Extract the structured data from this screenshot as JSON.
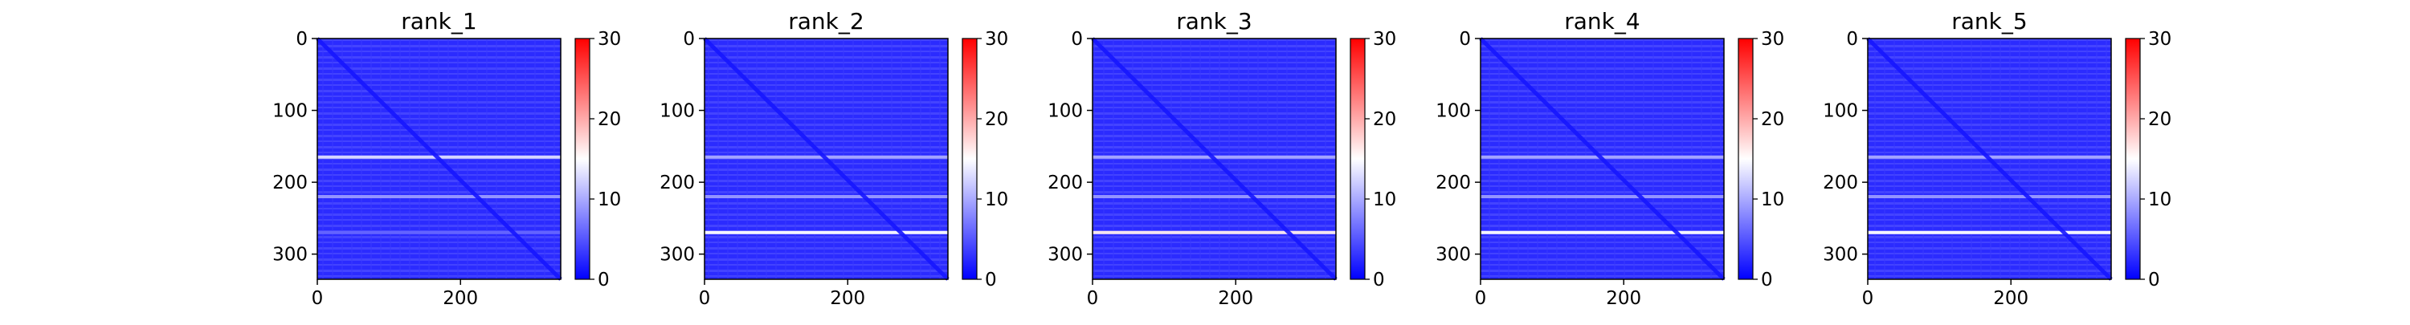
{
  "chart_data": [
    {
      "type": "heatmap",
      "title": "rank_1",
      "x_ticks": [
        "0",
        "200"
      ],
      "y_ticks": [
        "0",
        "100",
        "200",
        "300"
      ],
      "x_range": [
        0,
        340
      ],
      "y_range": [
        0,
        335
      ],
      "colorbar": {
        "min": 0,
        "max": 30,
        "ticks": [
          "0",
          "10",
          "20",
          "30"
        ]
      },
      "diagonal": true,
      "highlight_rows": [
        {
          "row": 165,
          "value": 13
        },
        {
          "row": 220,
          "value": 9
        },
        {
          "row": 270,
          "value": 6
        }
      ]
    },
    {
      "type": "heatmap",
      "title": "rank_2",
      "x_ticks": [
        "0",
        "200"
      ],
      "y_ticks": [
        "0",
        "100",
        "200",
        "300"
      ],
      "x_range": [
        0,
        340
      ],
      "y_range": [
        0,
        335
      ],
      "colorbar": {
        "min": 0,
        "max": 30,
        "ticks": [
          "0",
          "10",
          "20",
          "30"
        ]
      },
      "diagonal": true,
      "highlight_rows": [
        {
          "row": 165,
          "value": 10
        },
        {
          "row": 220,
          "value": 9
        },
        {
          "row": 270,
          "value": 15
        }
      ]
    },
    {
      "type": "heatmap",
      "title": "rank_3",
      "x_ticks": [
        "0",
        "200"
      ],
      "y_ticks": [
        "0",
        "100",
        "200",
        "300"
      ],
      "x_range": [
        0,
        340
      ],
      "y_range": [
        0,
        335
      ],
      "colorbar": {
        "min": 0,
        "max": 30,
        "ticks": [
          "0",
          "10",
          "20",
          "30"
        ]
      },
      "diagonal": true,
      "highlight_rows": [
        {
          "row": 165,
          "value": 10
        },
        {
          "row": 220,
          "value": 9
        },
        {
          "row": 270,
          "value": 16
        }
      ]
    },
    {
      "type": "heatmap",
      "title": "rank_4",
      "x_ticks": [
        "0",
        "200"
      ],
      "y_ticks": [
        "0",
        "100",
        "200",
        "300"
      ],
      "x_range": [
        0,
        340
      ],
      "y_range": [
        0,
        335
      ],
      "colorbar": {
        "min": 0,
        "max": 30,
        "ticks": [
          "0",
          "10",
          "20",
          "30"
        ]
      },
      "diagonal": true,
      "highlight_rows": [
        {
          "row": 165,
          "value": 10
        },
        {
          "row": 220,
          "value": 9
        },
        {
          "row": 270,
          "value": 15
        }
      ]
    },
    {
      "type": "heatmap",
      "title": "rank_5",
      "x_ticks": [
        "0",
        "200"
      ],
      "y_ticks": [
        "0",
        "100",
        "200",
        "300"
      ],
      "x_range": [
        0,
        340
      ],
      "y_range": [
        0,
        335
      ],
      "colorbar": {
        "min": 0,
        "max": 30,
        "ticks": [
          "0",
          "10",
          "20",
          "30"
        ]
      },
      "diagonal": true,
      "highlight_rows": [
        {
          "row": 165,
          "value": 10
        },
        {
          "row": 220,
          "value": 9
        },
        {
          "row": 270,
          "value": 15
        }
      ]
    }
  ],
  "colors": {
    "low": "#0000ff",
    "mid": "#ffffff",
    "high": "#ff0000",
    "base_cell": "#2f2fff"
  }
}
